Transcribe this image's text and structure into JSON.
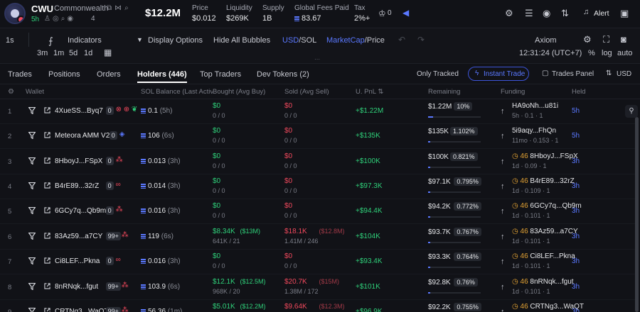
{
  "token": {
    "symbol": "CWU",
    "name": "Commonwealth",
    "age": "5h",
    "holders_short": "4",
    "market_cap": "$12.2M"
  },
  "stats": [
    {
      "label": "Price",
      "value": "$0.012"
    },
    {
      "label": "Liquidity",
      "value": "$269K"
    },
    {
      "label": "Supply",
      "value": "1B"
    },
    {
      "label": "Global Fees Paid",
      "value": "83.67"
    },
    {
      "label": "Tax",
      "value": "2%+"
    }
  ],
  "header_right": {
    "alert_label": "Alert",
    "badge_count": "0"
  },
  "toolbar": {
    "interval": "1s",
    "indicators": "Indicators",
    "display_options": "Display Options",
    "hide_bubbles": "Hide All Bubbles",
    "usd": "USD",
    "sol": "/SOL",
    "marketcap": "MarketCap",
    "price": "/Price",
    "exchange": "Axiom",
    "ranges": [
      "3m",
      "1m",
      "5d",
      "1d"
    ],
    "time": "12:31:24 (UTC+7)",
    "pct": "%",
    "log": "log",
    "auto": "auto"
  },
  "tabs": [
    {
      "label": "Trades"
    },
    {
      "label": "Positions"
    },
    {
      "label": "Orders"
    },
    {
      "label": "Holders (446)"
    },
    {
      "label": "Top Traders"
    },
    {
      "label": "Dev Tokens (2)"
    }
  ],
  "tabs_right": {
    "only_tracked": "Only Tracked",
    "instant_trade": "Instant Trade",
    "trades_panel": "Trades Panel",
    "currency": "USD"
  },
  "columns": {
    "wallet": "Wallet",
    "sol_balance": "SOL Balance (Last Active)",
    "bought": "Bought (Avg Buy)",
    "sold": "Sold (Avg Sell)",
    "upnl": "U. PnL",
    "remaining": "Remaining",
    "funding": "Funding",
    "held": "Held"
  },
  "rows": [
    {
      "rank": "1",
      "wallet": "4XueSS...Byq7",
      "count": "0",
      "sol": "0.1",
      "sol_time": "(5h)",
      "bought": "$0",
      "bought_sub": "0 / 0",
      "sold": "$0",
      "sold_sub": "0 / 0",
      "upnl": "+$1.22M",
      "remaining": "$1.22M",
      "remaining_pct": "10%",
      "remaining_fill": 0.1,
      "fund_top": "HA9oNh...u81i",
      "fund_bot": "5h · 0.1 · 1",
      "held": "5h"
    },
    {
      "rank": "2",
      "wallet": "Meteora AMM V2",
      "count": "0",
      "sol": "106",
      "sol_time": "(6s)",
      "bought": "$0",
      "bought_sub": "0 / 0",
      "sold": "$0",
      "sold_sub": "0 / 0",
      "upnl": "+$135K",
      "remaining": "$135K",
      "remaining_pct": "1.102%",
      "remaining_fill": 0.011,
      "fund_top": "5i9aqy...FhQn",
      "fund_bot": "11mo · 0.153 · 1",
      "held": "5h"
    },
    {
      "rank": "3",
      "wallet": "8HboyJ...FSpX",
      "count": "0",
      "sol": "0.013",
      "sol_time": "(3h)",
      "bought": "$0",
      "bought_sub": "0 / 0",
      "sold": "$0",
      "sold_sub": "0 / 0",
      "upnl": "+$100K",
      "remaining": "$100K",
      "remaining_pct": "0.821%",
      "remaining_fill": 0.008,
      "fund_top_prefix": "46",
      "fund_top": "8HboyJ...FSpX",
      "fund_bot": "1d · 0.09 · 1",
      "held": "3h"
    },
    {
      "rank": "4",
      "wallet": "B4rE89...32rZ",
      "count": "0",
      "sol": "0.014",
      "sol_time": "(3h)",
      "bought": "$0",
      "bought_sub": "0 / 0",
      "sold": "$0",
      "sold_sub": "0 / 0",
      "upnl": "+$97.3K",
      "remaining": "$97.1K",
      "remaining_pct": "0.795%",
      "remaining_fill": 0.008,
      "fund_top_prefix": "46",
      "fund_top": "B4rE89...32rZ",
      "fund_bot": "1d · 0.109 · 1",
      "held": "3h"
    },
    {
      "rank": "5",
      "wallet": "6GCy7q...Qb9m",
      "count": "0",
      "sol": "0.016",
      "sol_time": "(3h)",
      "bought": "$0",
      "bought_sub": "0 / 0",
      "sold": "$0",
      "sold_sub": "0 / 0",
      "upnl": "+$94.4K",
      "remaining": "$94.2K",
      "remaining_pct": "0.772%",
      "remaining_fill": 0.008,
      "fund_top_prefix": "46",
      "fund_top": "6GCy7q...Qb9m",
      "fund_bot": "1d · 0.101 · 1",
      "held": "3h"
    },
    {
      "rank": "6",
      "wallet": "83Az59...a7CY",
      "count": "99+",
      "sol": "119",
      "sol_time": "(6s)",
      "bought": "$8.34K",
      "bought_extra": "($13M)",
      "bought_sub": "641K / 21",
      "sold": "$18.1K",
      "sold_extra": "($12.8M)",
      "sold_sub": "1.41M / 246",
      "upnl": "+$104K",
      "remaining": "$93.7K",
      "remaining_pct": "0.767%",
      "remaining_fill": 0.008,
      "fund_top_prefix": "46",
      "fund_top": "83Az59...a7CY",
      "fund_bot": "1d · 0.101 · 1",
      "held": "3h"
    },
    {
      "rank": "7",
      "wallet": "Ci8LEF...Pkna",
      "count": "0",
      "sol": "0.016",
      "sol_time": "(3h)",
      "bought": "$0",
      "bought_sub": "0 / 0",
      "sold": "$0",
      "sold_sub": "0 / 0",
      "upnl": "+$93.4K",
      "remaining": "$93.3K",
      "remaining_pct": "0.764%",
      "remaining_fill": 0.008,
      "fund_top_prefix": "46",
      "fund_top": "Ci8LEF...Pkna",
      "fund_bot": "1d · 0.101 · 1",
      "held": "3h"
    },
    {
      "rank": "8",
      "wallet": "8nRNqk...fgut",
      "count": "99+",
      "sol": "103.9",
      "sol_time": "(6s)",
      "bought": "$12.1K",
      "bought_extra": "($12.5M)",
      "bought_sub": "968K / 20",
      "sold": "$20.7K",
      "sold_extra": "($15M)",
      "sold_sub": "1.38M / 172",
      "upnl": "+$101K",
      "remaining": "$92.8K",
      "remaining_pct": "0.76%",
      "remaining_fill": 0.008,
      "fund_top_prefix": "46",
      "fund_top": "8nRNqk...fgut",
      "fund_bot": "1d · 0.101 · 1",
      "held": "3h"
    },
    {
      "rank": "9",
      "wallet": "CRTNg3...WaQT",
      "count": "99+",
      "sol": "56.36",
      "sol_time": "(1m)",
      "bought": "$5.01K",
      "bought_extra": "($12.2M)",
      "bought_sub": "",
      "sold": "$9.64K",
      "sold_extra": "($12.3M)",
      "sold_sub": "",
      "upnl": "+$96.9K",
      "remaining": "$92.2K",
      "remaining_pct": "0.755%",
      "remaining_fill": 0.008,
      "fund_top_prefix": "46",
      "fund_top": "CRTNg3...WaQT",
      "fund_bot": "",
      "held": "3h"
    }
  ],
  "colors": {
    "green": "#2fd17a",
    "red": "#f2495d",
    "accent": "#5a78ff",
    "bg": "#111217"
  }
}
